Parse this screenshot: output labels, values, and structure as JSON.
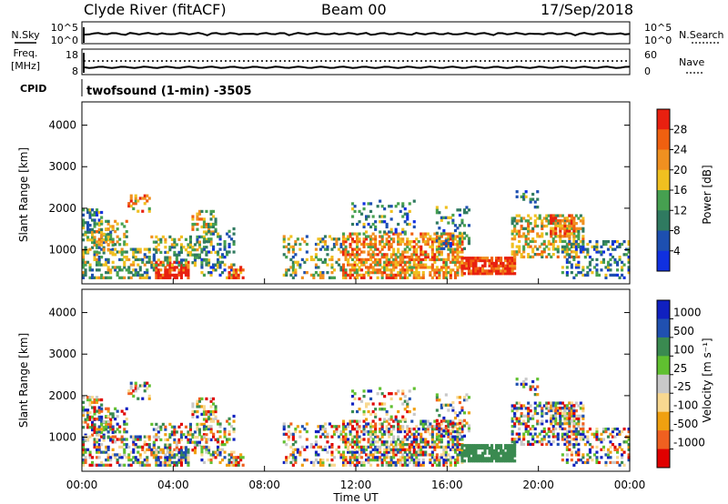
{
  "header": {
    "station": "Clyde River (fitACF)",
    "beam": "Beam 00",
    "date": "17/Sep/2018"
  },
  "panel_nsky": {
    "left_label": "N.Sky",
    "left_ticks": [
      "10^5",
      "10^0"
    ],
    "right_label": "N.Search",
    "right_ticks": [
      "10^5",
      "10^0"
    ]
  },
  "panel_freq": {
    "left_label_1": "Freq.",
    "left_label_2": "[MHz]",
    "left_ticks": [
      "18",
      "8"
    ],
    "right_label": "Nave",
    "right_ticks": [
      "60",
      "0"
    ],
    "cpid_label": "CPID",
    "cpid_text": "twofsound (1-min) -3505"
  },
  "colors": {
    "power": [
      "#1030e0",
      "#1d4fb0",
      "#2f7a60",
      "#46a050",
      "#f0c020",
      "#f09020",
      "#f06010",
      "#e82010"
    ],
    "velocity": [
      "#e00000",
      "#f06020",
      "#f0a010",
      "#f8d890",
      "#c8c8c8",
      "#60c030",
      "#3a8a50",
      "#2050b0",
      "#1020c0"
    ]
  },
  "chart_data": [
    {
      "type": "heatmap",
      "name": "power",
      "ylabel": "Slant Range [km]",
      "xlim": [
        0,
        24
      ],
      "ylim": [
        180,
        4560
      ],
      "yticks": [
        "1000",
        "2000",
        "3000",
        "4000"
      ],
      "colorbar_label": "Power [dB]",
      "colorbar_ticks": [
        "28",
        "24",
        "20",
        "16",
        "12",
        "8",
        "4"
      ],
      "colorbar_range": [
        0,
        32
      ],
      "grid": false
    },
    {
      "type": "heatmap",
      "name": "velocity",
      "ylabel": "Slant Range [km]",
      "xlabel": "Time UT",
      "xlim": [
        0,
        24
      ],
      "ylim": [
        180,
        4560
      ],
      "xticks": [
        "00:00",
        "04:00",
        "08:00",
        "12:00",
        "16:00",
        "20:00",
        "00:00"
      ],
      "yticks": [
        "1000",
        "2000",
        "3000",
        "4000"
      ],
      "colorbar_label": "Velocity [m s⁻¹]",
      "colorbar_ticks": [
        "1000",
        "500",
        "100",
        "25",
        "-25",
        "-100",
        "-500",
        "-1000"
      ],
      "grid": false
    }
  ]
}
